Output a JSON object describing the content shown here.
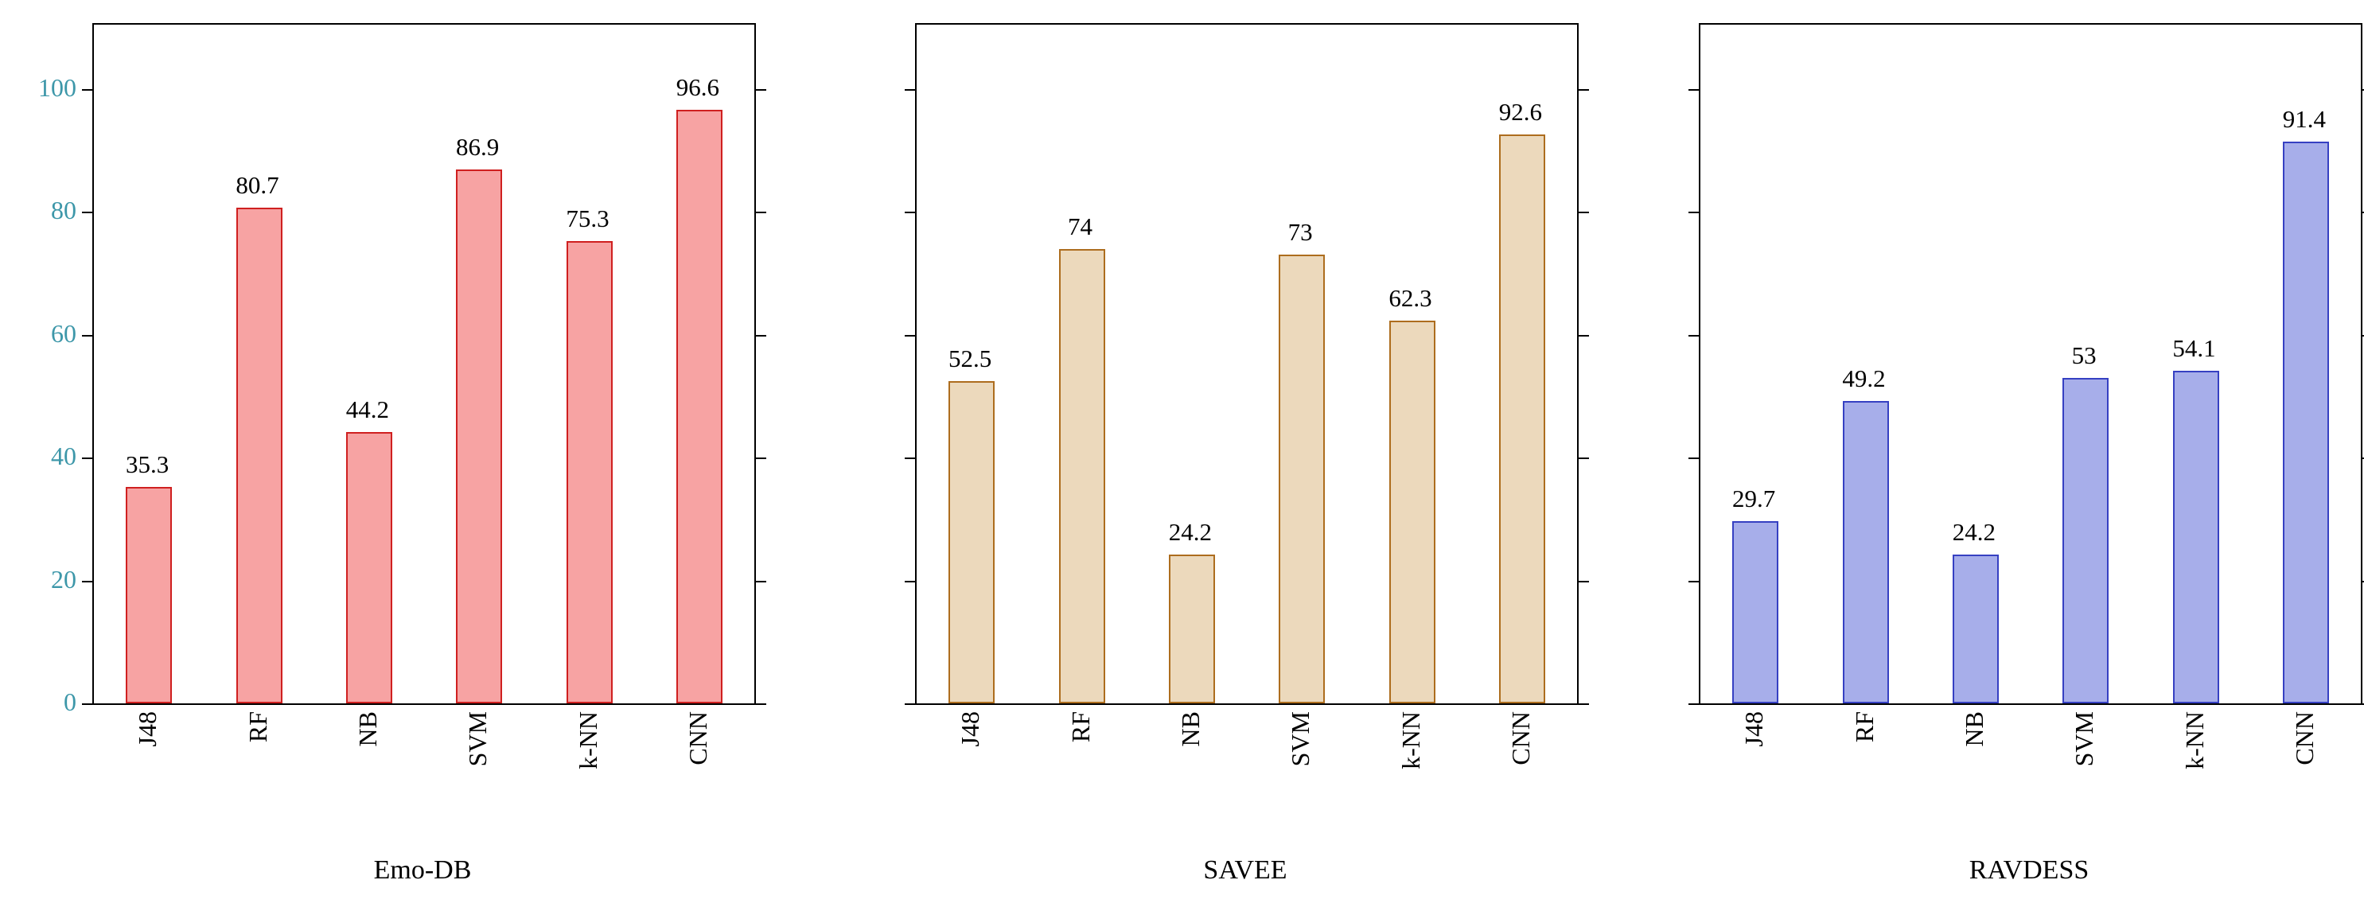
{
  "figure": {
    "background": "#ffffff",
    "description": "Three bar charts comparing classifier accuracies on three speech-emotion datasets"
  },
  "chart_data": [
    {
      "type": "bar",
      "title": "Emo-DB",
      "categories": [
        "J48",
        "RF",
        "NB",
        "SVM",
        "k-NN",
        "CNN"
      ],
      "values": [
        35.3,
        80.7,
        44.2,
        86.9,
        75.3,
        96.6
      ],
      "value_labels": [
        "35.3",
        "80.7",
        "44.2",
        "86.9",
        "75.3",
        "96.6"
      ],
      "xlabel": "",
      "ylabel": "",
      "ylim": [
        0,
        110.5
      ],
      "yticks": [
        0,
        20,
        40,
        60,
        80,
        100
      ],
      "show_ytick_labels": true,
      "ytick_label_color": "#3d97a9",
      "bar_fill": "#f7a3a3",
      "bar_stroke": "#cf2020",
      "grid": false,
      "legend_position": "none"
    },
    {
      "type": "bar",
      "title": "SAVEE",
      "categories": [
        "J48",
        "RF",
        "NB",
        "SVM",
        "k-NN",
        "CNN"
      ],
      "values": [
        52.5,
        74,
        24.2,
        73,
        62.3,
        92.6
      ],
      "value_labels": [
        "52.5",
        "74",
        "24.2",
        "73",
        "62.3",
        "92.6"
      ],
      "xlabel": "",
      "ylabel": "",
      "ylim": [
        0,
        110.5
      ],
      "yticks": [
        0,
        20,
        40,
        60,
        80,
        100
      ],
      "show_ytick_labels": false,
      "ytick_label_color": "#3d97a9",
      "bar_fill": "#ecd9bc",
      "bar_stroke": "#ad6d1e",
      "grid": false,
      "legend_position": "none"
    },
    {
      "type": "bar",
      "title": "RAVDESS",
      "categories": [
        "J48",
        "RF",
        "NB",
        "SVM",
        "k-NN",
        "CNN"
      ],
      "values": [
        29.7,
        49.2,
        24.2,
        53,
        54.1,
        91.4
      ],
      "value_labels": [
        "29.7",
        "49.2",
        "24.2",
        "53",
        "54.1",
        "91.4"
      ],
      "xlabel": "",
      "ylabel": "",
      "ylim": [
        0,
        110.5
      ],
      "yticks": [
        0,
        20,
        40,
        60,
        80,
        100
      ],
      "show_ytick_labels": false,
      "ytick_label_color": "#3d97a9",
      "bar_fill": "#a7aeea",
      "bar_stroke": "#3640c2",
      "grid": false,
      "legend_position": "none"
    }
  ]
}
